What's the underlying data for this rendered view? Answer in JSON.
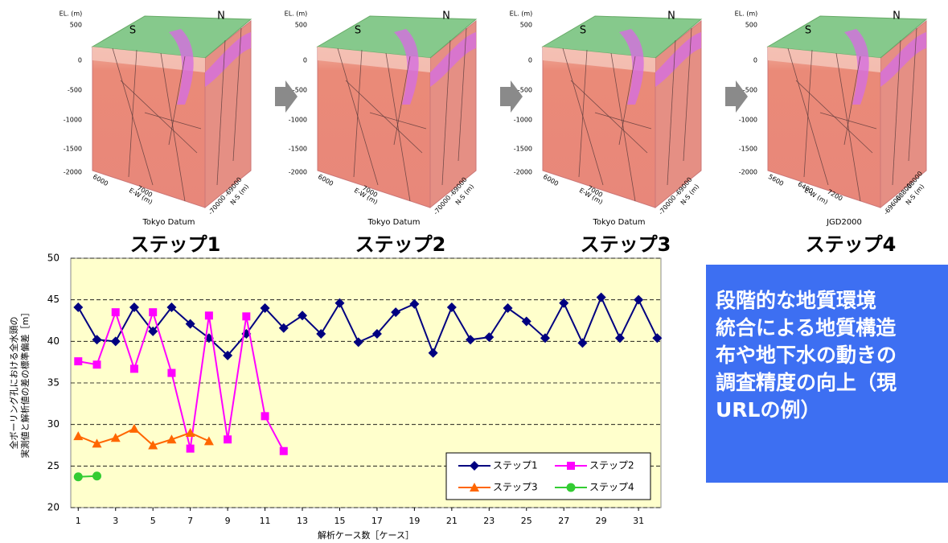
{
  "panel_labels": {
    "el": "EL. (m)",
    "el_ticks": [
      "500",
      "0",
      "-500",
      "-1000",
      "-1500",
      "-2000"
    ],
    "south": "S",
    "north": "N",
    "ew": "E-W (m)",
    "ns": "N-S (m)"
  },
  "panels": [
    {
      "step": "ステップ1",
      "datum": "Tokyo Datum",
      "ew_ticks": [
        "6000",
        "7000"
      ],
      "ns_ticks": [
        "-70000",
        "-69000"
      ]
    },
    {
      "step": "ステップ2",
      "datum": "Tokyo Datum",
      "ew_ticks": [
        "6000",
        "7000"
      ],
      "ns_ticks": [
        "-70000",
        "-69000"
      ]
    },
    {
      "step": "ステップ3",
      "datum": "Tokyo Datum",
      "ew_ticks": [
        "6000",
        "7000"
      ],
      "ns_ticks": [
        "-70000",
        "-69000"
      ]
    },
    {
      "step": "ステップ4",
      "datum": "JGD2000",
      "ew_ticks": [
        "5600",
        "6400",
        "7200"
      ],
      "ns_ticks": [
        "-69600",
        "-68800",
        "-68000"
      ]
    }
  ],
  "note": {
    "lines": [
      "段階的な地質環境",
      "統合による地質構造",
      "布や地下水の動きの",
      "調査精度の向上（現",
      "URLの例）"
    ]
  },
  "chart_data": {
    "type": "line",
    "xlabel": "解析ケース数［ケース］",
    "ylabel_lines": [
      "全ボーリング孔における全水頭の",
      "実測値と解析値の差の標準偏差［m］"
    ],
    "x": [
      1,
      2,
      3,
      4,
      5,
      6,
      7,
      8,
      9,
      10,
      11,
      12,
      13,
      14,
      15,
      16,
      17,
      18,
      19,
      20,
      21,
      22,
      23,
      24,
      25,
      26,
      27,
      28,
      29,
      30,
      31,
      32
    ],
    "xlim": [
      0.6,
      32.2
    ],
    "xticks": [
      1,
      3,
      5,
      7,
      9,
      11,
      13,
      15,
      17,
      19,
      21,
      23,
      25,
      27,
      29,
      31
    ],
    "ylim": [
      20,
      50
    ],
    "yticks": [
      20,
      25,
      30,
      35,
      40,
      45,
      50
    ],
    "grid": true,
    "legend": "lower right",
    "series": [
      {
        "name": "ステップ1",
        "color": "#000080",
        "marker": "diamond",
        "values": [
          44.1,
          40.2,
          40.0,
          44.1,
          41.2,
          44.1,
          42.1,
          40.4,
          38.3,
          40.9,
          44.0,
          41.6,
          43.1,
          40.9,
          44.6,
          39.9,
          40.9,
          43.5,
          44.5,
          38.6,
          44.1,
          40.2,
          40.5,
          44.0,
          42.4,
          40.4,
          44.6,
          39.8,
          45.3,
          40.4,
          45.0,
          40.4
        ]
      },
      {
        "name": "ステップ2",
        "color": "#ff00ff",
        "marker": "square",
        "values": [
          37.6,
          37.2,
          43.5,
          36.7,
          43.5,
          36.2,
          27.1,
          43.1,
          28.2,
          43.0,
          31.0,
          26.8,
          null,
          null,
          null,
          null,
          null,
          null,
          null,
          null,
          null,
          null,
          null,
          null,
          null,
          null,
          null,
          null,
          null,
          null,
          null,
          null
        ]
      },
      {
        "name": "ステップ3",
        "color": "#ff6600",
        "marker": "triangle",
        "values": [
          28.6,
          27.7,
          28.4,
          29.5,
          27.5,
          28.2,
          29.0,
          28.0,
          null,
          null,
          null,
          null,
          null,
          null,
          null,
          null,
          null,
          null,
          null,
          null,
          null,
          null,
          null,
          null,
          null,
          null,
          null,
          null,
          null,
          null,
          null,
          null
        ]
      },
      {
        "name": "ステップ4",
        "color": "#33cc33",
        "marker": "circle",
        "values": [
          23.7,
          23.8,
          null,
          null,
          null,
          null,
          null,
          null,
          null,
          null,
          null,
          null,
          null,
          null,
          null,
          null,
          null,
          null,
          null,
          null,
          null,
          null,
          null,
          null,
          null,
          null,
          null,
          null,
          null,
          null,
          null,
          null
        ]
      }
    ]
  }
}
